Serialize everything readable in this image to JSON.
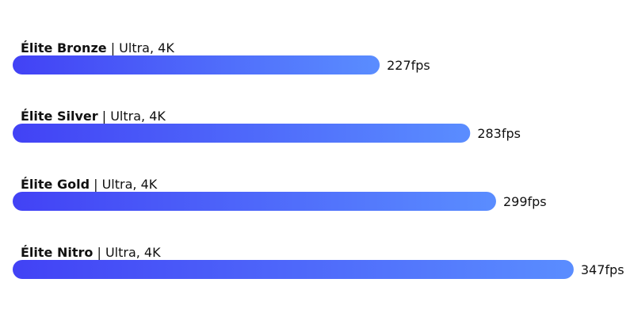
{
  "chart_data": {
    "type": "bar",
    "orientation": "horizontal",
    "categories": [
      "Élite Bronze",
      "Élite Silver",
      "Élite Gold",
      "Élite Nitro"
    ],
    "detail": "| Ultra, 4K",
    "values": [
      227,
      283,
      299,
      347
    ],
    "value_labels": [
      "227fps",
      "283fps",
      "299fps",
      "347fps"
    ],
    "color_start": "#4242f5",
    "color_end": "#5a8dff"
  }
}
